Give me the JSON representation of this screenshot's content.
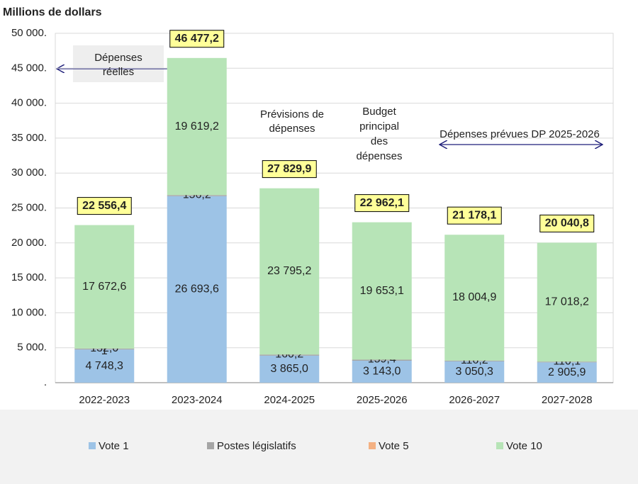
{
  "chart_data": {
    "type": "bar",
    "stacked": true,
    "y_label": "Millions de dollars",
    "categories": [
      "2022-2023",
      "2023-2024",
      "2024-2025",
      "2025-2026",
      "2026-2027",
      "2027-2028"
    ],
    "series": [
      {
        "name": "Vote 1",
        "color": "#9dc3e6",
        "values": [
          4748.3,
          26693.6,
          3865.0,
          3143.0,
          3050.3,
          2905.9
        ],
        "value_labels": [
          "4 748,3",
          "26 693,6",
          "3 865,0",
          "3 143,0",
          "3 050,3",
          "2 905,9"
        ]
      },
      {
        "name": "Postes législatifs",
        "color": "#a5a5a5",
        "values": [
          132.0,
          156.2,
          160.2,
          159.4,
          116.2,
          110.1
        ],
        "value_labels": [
          "132,0",
          "156,2",
          "160,2",
          "159,4",
          "116,2",
          "110,1"
        ]
      },
      {
        "name": "Vote 5",
        "color": "#f4b183",
        "values": [
          1,
          null,
          null,
          null,
          null,
          null
        ]
      },
      {
        "name": "Vote 10",
        "color": "#b7e4b7",
        "values": [
          17672.6,
          19619.2,
          23795.2,
          19653.1,
          18004.9,
          17018.2
        ],
        "value_labels": [
          "17 672,6",
          "19 619,2",
          "23 795,2",
          "19 653,1",
          "18 004,9",
          "17 018,2"
        ]
      }
    ],
    "totals": {
      "values": [
        22556.4,
        46477.2,
        27829.9,
        22962.1,
        21178.1,
        20040.8
      ],
      "value_labels": [
        "22 556,4",
        "46 477,2",
        "27 829,9",
        "22 962,1",
        "21 178,1",
        "20 040,8"
      ],
      "color": "#ffff99"
    },
    "ylim": [
      0,
      50000
    ],
    "yticks": [
      {
        "value": 0,
        "label": "."
      },
      {
        "value": 5000,
        "label": "5 000."
      },
      {
        "value": 10000,
        "label": "10 000."
      },
      {
        "value": 15000,
        "label": "15 000."
      },
      {
        "value": 20000,
        "label": "20 000."
      },
      {
        "value": 25000,
        "label": "25 000."
      },
      {
        "value": 30000,
        "label": "30 000."
      },
      {
        "value": 35000,
        "label": "35 000."
      },
      {
        "value": 40000,
        "label": "40 000."
      },
      {
        "value": 45000,
        "label": "45 000."
      },
      {
        "value": 50000,
        "label": "50 000."
      }
    ],
    "grid": true,
    "legend": "bottom",
    "annotations": [
      {
        "lines": [
          "Dépenses",
          "réelles"
        ]
      },
      {
        "lines": [
          "Prévisions de",
          "dépenses"
        ]
      },
      {
        "lines": [
          "Budget",
          "principal",
          "des",
          "dépenses"
        ]
      },
      {
        "lines": [
          "Dépenses prévues DP 2025-2026"
        ]
      }
    ]
  }
}
